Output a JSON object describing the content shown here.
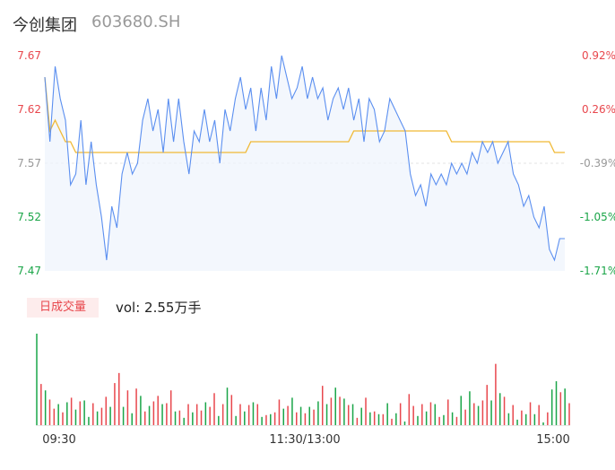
{
  "header": {
    "name": "今创集团",
    "code": "603680.SH"
  },
  "volume_panel": {
    "tab_label": "日成交量",
    "vol_text": "vol: 2.55万手"
  },
  "colors": {
    "price_line": "#5b8ff0",
    "avg_line": "#f0b935",
    "up": "#e8474d",
    "down": "#1aa548",
    "neutral": "#999999"
  },
  "chart_data": [
    {
      "type": "line",
      "title": "",
      "y_ticks": [
        "7.67",
        "7.62",
        "7.57",
        "7.52",
        "7.47"
      ],
      "y_tick_values": [
        7.67,
        7.62,
        7.57,
        7.52,
        7.47
      ],
      "pct_ticks": [
        "0.92%",
        "0.26%",
        "-0.39%",
        "-1.05%",
        "-1.71%"
      ],
      "ylim": [
        7.47,
        7.67
      ],
      "x_ticks": [
        "09:30",
        "11:30/13:00",
        "15:00"
      ],
      "series": [
        {
          "values": [
            7.65,
            7.59,
            7.66,
            7.63,
            7.61,
            7.55,
            7.56,
            7.61,
            7.55,
            7.59,
            7.55,
            7.52,
            7.48,
            7.53,
            7.51,
            7.56,
            7.58,
            7.56,
            7.57,
            7.61,
            7.63,
            7.6,
            7.62,
            7.58,
            7.63,
            7.59,
            7.63,
            7.59,
            7.56,
            7.6,
            7.59,
            7.62,
            7.59,
            7.61,
            7.57,
            7.62,
            7.6,
            7.63,
            7.65,
            7.62,
            7.64,
            7.6,
            7.64,
            7.61,
            7.66,
            7.63,
            7.67,
            7.65,
            7.63,
            7.64,
            7.66,
            7.63,
            7.65,
            7.63,
            7.64,
            7.61,
            7.63,
            7.64,
            7.62,
            7.64,
            7.61,
            7.63,
            7.59,
            7.63,
            7.62,
            7.59,
            7.6,
            7.63,
            7.62,
            7.61,
            7.6,
            7.56,
            7.54,
            7.55,
            7.53,
            7.56,
            7.55,
            7.56,
            7.55,
            7.57,
            7.56,
            7.57,
            7.56,
            7.58,
            7.57,
            7.59,
            7.58,
            7.59,
            7.57,
            7.58,
            7.59,
            7.56,
            7.55,
            7.53,
            7.54,
            7.52,
            7.51,
            7.53,
            7.49,
            7.48,
            7.5,
            7.5
          ]
        },
        {
          "values": [
            7.65,
            7.6,
            7.61,
            7.6,
            7.59,
            7.59,
            7.58,
            7.58,
            7.58,
            7.58,
            7.58,
            7.58,
            7.58,
            7.58,
            7.58,
            7.58,
            7.58,
            7.58,
            7.58,
            7.58,
            7.58,
            7.58,
            7.58,
            7.58,
            7.58,
            7.58,
            7.58,
            7.58,
            7.58,
            7.58,
            7.58,
            7.58,
            7.58,
            7.58,
            7.58,
            7.58,
            7.58,
            7.58,
            7.58,
            7.58,
            7.59,
            7.59,
            7.59,
            7.59,
            7.59,
            7.59,
            7.59,
            7.59,
            7.59,
            7.59,
            7.59,
            7.59,
            7.59,
            7.59,
            7.59,
            7.59,
            7.59,
            7.59,
            7.59,
            7.59,
            7.6,
            7.6,
            7.6,
            7.6,
            7.6,
            7.6,
            7.6,
            7.6,
            7.6,
            7.6,
            7.6,
            7.6,
            7.6,
            7.6,
            7.6,
            7.6,
            7.6,
            7.6,
            7.6,
            7.59,
            7.59,
            7.59,
            7.59,
            7.59,
            7.59,
            7.59,
            7.59,
            7.59,
            7.59,
            7.59,
            7.59,
            7.59,
            7.59,
            7.59,
            7.59,
            7.59,
            7.59,
            7.59,
            7.59,
            7.58,
            7.58,
            7.58
          ]
        }
      ]
    },
    {
      "type": "bar",
      "title": "",
      "ylim": [
        0,
        100
      ],
      "values": [
        100,
        45,
        38,
        28,
        18,
        23,
        14,
        25,
        30,
        17,
        26,
        27,
        9,
        24,
        15,
        19,
        31,
        20,
        46,
        57,
        20,
        38,
        13,
        40,
        32,
        15,
        21,
        26,
        32,
        23,
        24,
        38,
        15,
        16,
        8,
        23,
        14,
        23,
        16,
        25,
        20,
        35,
        10,
        23,
        41,
        33,
        10,
        23,
        15,
        22,
        25,
        23,
        9,
        11,
        12,
        14,
        28,
        18,
        21,
        30,
        14,
        20,
        13,
        20,
        17,
        26,
        43,
        23,
        30,
        41,
        31,
        29,
        22,
        23,
        8,
        19,
        30,
        14,
        15,
        12,
        12,
        24,
        7,
        13,
        24,
        4,
        34,
        21,
        10,
        23,
        15,
        25,
        23,
        9,
        11,
        28,
        14,
        9,
        32,
        17,
        37,
        24,
        21,
        27,
        44,
        27,
        67,
        35,
        31,
        13,
        22,
        6,
        16,
        12,
        25,
        12,
        22,
        3,
        14,
        39,
        48,
        36,
        40,
        24
      ],
      "colors": [
        "down",
        "up",
        "down",
        "up",
        "up",
        "down",
        "up",
        "down",
        "up",
        "down",
        "up",
        "down",
        "down",
        "up",
        "down",
        "up",
        "up",
        "down",
        "up",
        "up",
        "down",
        "up",
        "down",
        "up",
        "down",
        "up",
        "down",
        "up",
        "up",
        "down",
        "up",
        "up",
        "down",
        "up",
        "down",
        "up",
        "down",
        "up",
        "up",
        "down",
        "up",
        "up",
        "down",
        "up",
        "down",
        "up",
        "down",
        "up",
        "down",
        "up",
        "down",
        "up",
        "down",
        "up",
        "down",
        "up",
        "up",
        "down",
        "up",
        "down",
        "up",
        "down",
        "up",
        "down",
        "up",
        "down",
        "up",
        "down",
        "up",
        "down",
        "up",
        "down",
        "up",
        "down",
        "up",
        "down",
        "up",
        "down",
        "up",
        "down",
        "up",
        "down",
        "up",
        "down",
        "up",
        "down",
        "up",
        "up",
        "down",
        "up",
        "down",
        "up",
        "down",
        "up",
        "down",
        "up",
        "down",
        "up",
        "down",
        "up",
        "down",
        "up",
        "down",
        "up",
        "up",
        "down",
        "up",
        "down",
        "up",
        "down",
        "up",
        "down",
        "up",
        "down",
        "up",
        "down",
        "up",
        "down",
        "up",
        "down",
        "down",
        "up",
        "down",
        "up"
      ]
    }
  ]
}
